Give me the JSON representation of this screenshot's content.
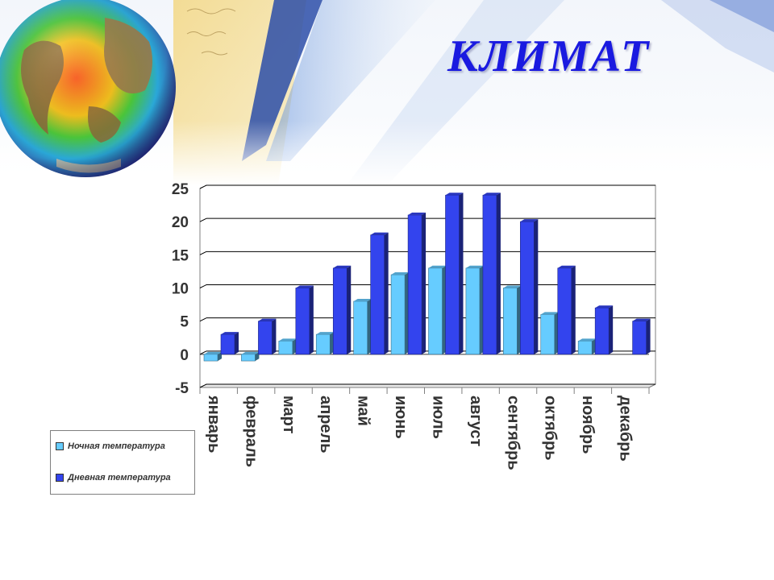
{
  "slide": {
    "title": "КЛИМАТ"
  },
  "legend": {
    "items": [
      {
        "label": "Ночная температура",
        "color": "#66ccff"
      },
      {
        "label": "Дневная температура",
        "color": "#3344ee"
      }
    ]
  },
  "chart_data": {
    "type": "bar",
    "categories": [
      "январь",
      "февраль",
      "март",
      "апрель",
      "май",
      "июнь",
      "июль",
      "август",
      "сентябрь",
      "октябрь",
      "ноябрь",
      "декабрь"
    ],
    "series": [
      {
        "name": "Ночная температура",
        "values": [
          -1,
          -1,
          2,
          3,
          8,
          12,
          13,
          13,
          10,
          6,
          2,
          0
        ],
        "color": "#66ccff"
      },
      {
        "name": "Дневная температура",
        "values": [
          3,
          5,
          10,
          13,
          18,
          21,
          24,
          24,
          20,
          13,
          7,
          5
        ],
        "color": "#3344ee"
      }
    ],
    "title": "",
    "xlabel": "",
    "ylabel": "",
    "ylim": [
      -5,
      25
    ],
    "yticks": [
      "-5",
      "0",
      "5",
      "10",
      "15",
      "20",
      "25"
    ],
    "grid": true,
    "legend_position": "bottom-left",
    "style": "3d-columns"
  }
}
